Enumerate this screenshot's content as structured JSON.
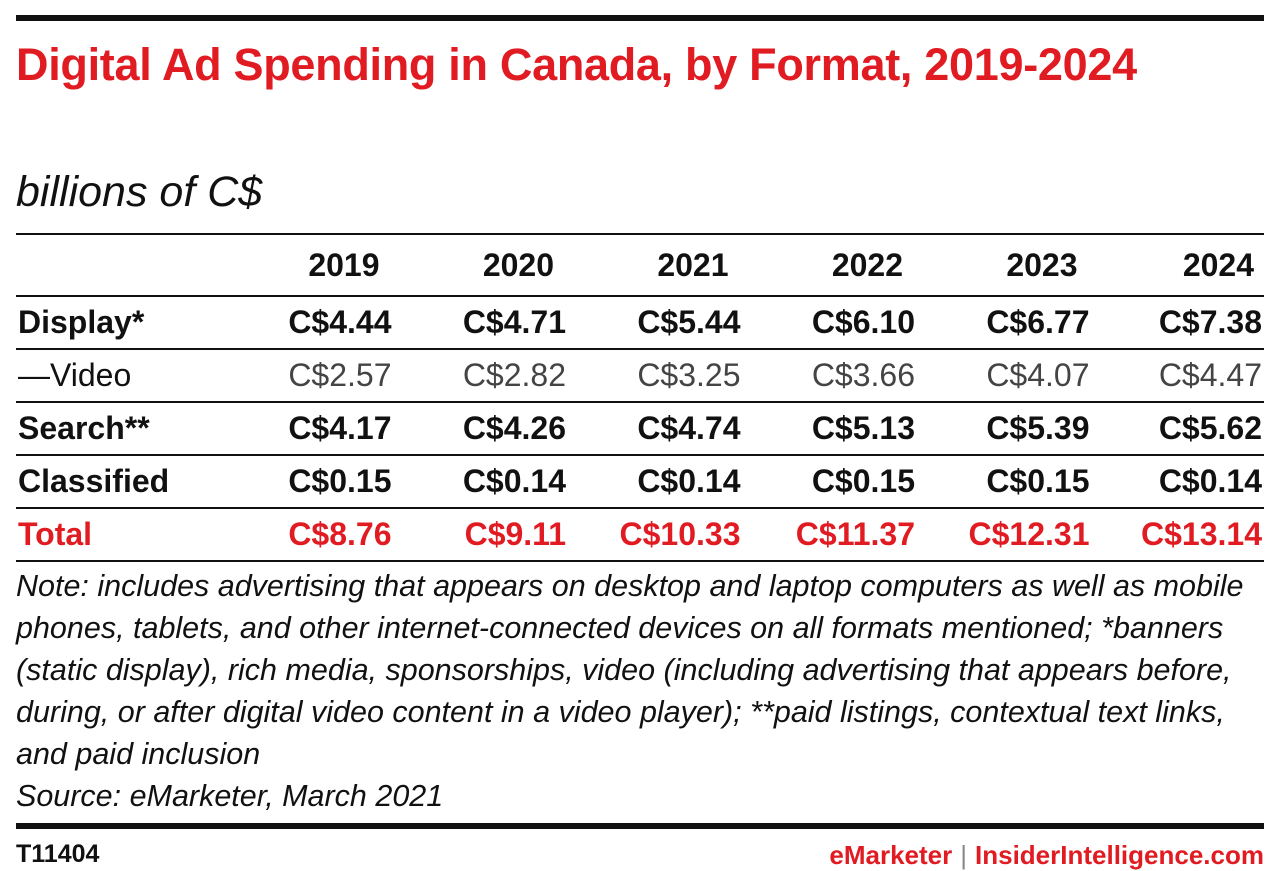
{
  "chart_data": {
    "type": "table",
    "title": "Digital Ad Spending in Canada, by Format, 2019-2024",
    "subtitle": "billions of C$",
    "columns": [
      "2019",
      "2020",
      "2021",
      "2022",
      "2023",
      "2024"
    ],
    "rows": [
      {
        "label": "Display*",
        "style": "bold",
        "values": [
          "C$4.44",
          "C$4.71",
          "C$5.44",
          "C$6.10",
          "C$6.77",
          "C$7.38"
        ]
      },
      {
        "label": "—Video",
        "style": "sub",
        "values": [
          "C$2.57",
          "C$2.82",
          "C$3.25",
          "C$3.66",
          "C$4.07",
          "C$4.47"
        ]
      },
      {
        "label": "Search**",
        "style": "bold",
        "values": [
          "C$4.17",
          "C$4.26",
          "C$4.74",
          "C$5.13",
          "C$5.39",
          "C$5.62"
        ]
      },
      {
        "label": "Classified",
        "style": "bold",
        "values": [
          "C$0.15",
          "C$0.14",
          "C$0.14",
          "C$0.15",
          "C$0.15",
          "C$0.14"
        ]
      },
      {
        "label": "Total",
        "style": "total",
        "values": [
          "C$8.76",
          "C$9.11",
          "C$10.33",
          "C$11.37",
          "C$12.31",
          "C$13.14"
        ]
      }
    ]
  },
  "note": "Note: includes advertising that appears on desktop and laptop computers as well as mobile phones, tablets, and other internet-connected devices on all formats mentioned; *banners (static display), rich media, sponsorships, video (including advertising that appears before, during, or after digital video content in a video player); **paid listings, contextual text links, and paid inclusion",
  "source": "Source: eMarketer, March 2021",
  "footer": {
    "chart_id": "T11404",
    "brand_left": "eMarketer",
    "separator": "|",
    "brand_right": "InsiderIntelligence.com"
  },
  "colors": {
    "accent": "#e11b22",
    "text": "#111111",
    "sub_text": "#444444"
  }
}
